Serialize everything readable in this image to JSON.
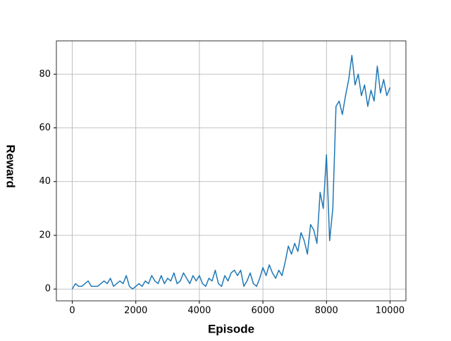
{
  "chart_data": {
    "type": "line",
    "xlabel": "Episode",
    "ylabel": "Reward",
    "x": [
      0,
      100,
      200,
      300,
      400,
      500,
      600,
      700,
      800,
      900,
      1000,
      1100,
      1200,
      1300,
      1400,
      1500,
      1600,
      1700,
      1800,
      1900,
      2000,
      2100,
      2200,
      2300,
      2400,
      2500,
      2600,
      2700,
      2800,
      2900,
      3000,
      3100,
      3200,
      3300,
      3400,
      3500,
      3600,
      3700,
      3800,
      3900,
      4000,
      4100,
      4200,
      4300,
      4400,
      4500,
      4600,
      4700,
      4800,
      4900,
      5000,
      5100,
      5200,
      5300,
      5400,
      5500,
      5600,
      5700,
      5800,
      5900,
      6000,
      6100,
      6200,
      6300,
      6400,
      6500,
      6600,
      6700,
      6800,
      6900,
      7000,
      7100,
      7200,
      7300,
      7400,
      7500,
      7600,
      7700,
      7800,
      7900,
      8000,
      8100,
      8200,
      8300,
      8400,
      8500,
      8600,
      8700,
      8800,
      8900,
      9000,
      9100,
      9200,
      9300,
      9400,
      9500,
      9600,
      9700,
      9800,
      9900,
      10000
    ],
    "series": [
      {
        "color": "#1f77b4",
        "values": [
          0,
          2,
          1,
          1,
          2,
          3,
          1,
          1,
          1,
          2,
          3,
          2,
          4,
          1,
          2,
          3,
          2,
          5,
          1,
          0,
          1,
          2,
          1,
          3,
          2,
          5,
          3,
          2,
          5,
          2,
          4,
          3,
          6,
          2,
          3,
          6,
          4,
          2,
          5,
          3,
          5,
          2,
          1,
          4,
          3,
          7,
          2,
          1,
          5,
          3,
          6,
          7,
          5,
          7,
          1,
          3,
          6,
          2,
          1,
          4,
          8,
          5,
          9,
          6,
          4,
          7,
          5,
          10,
          16,
          13,
          17,
          14,
          21,
          18,
          13,
          24,
          22,
          17,
          36,
          30,
          50,
          18,
          30,
          68,
          70,
          65,
          72,
          78,
          87,
          76,
          80,
          72,
          76,
          68,
          74,
          70,
          83,
          73,
          78,
          72,
          75
        ]
      }
    ],
    "xlim": [
      -500,
      10500
    ],
    "ylim": [
      -4.4,
      92.4
    ],
    "xticks": [
      0,
      2000,
      4000,
      6000,
      8000,
      10000
    ],
    "yticks": [
      0,
      20,
      40,
      60,
      80
    ],
    "grid": true
  }
}
